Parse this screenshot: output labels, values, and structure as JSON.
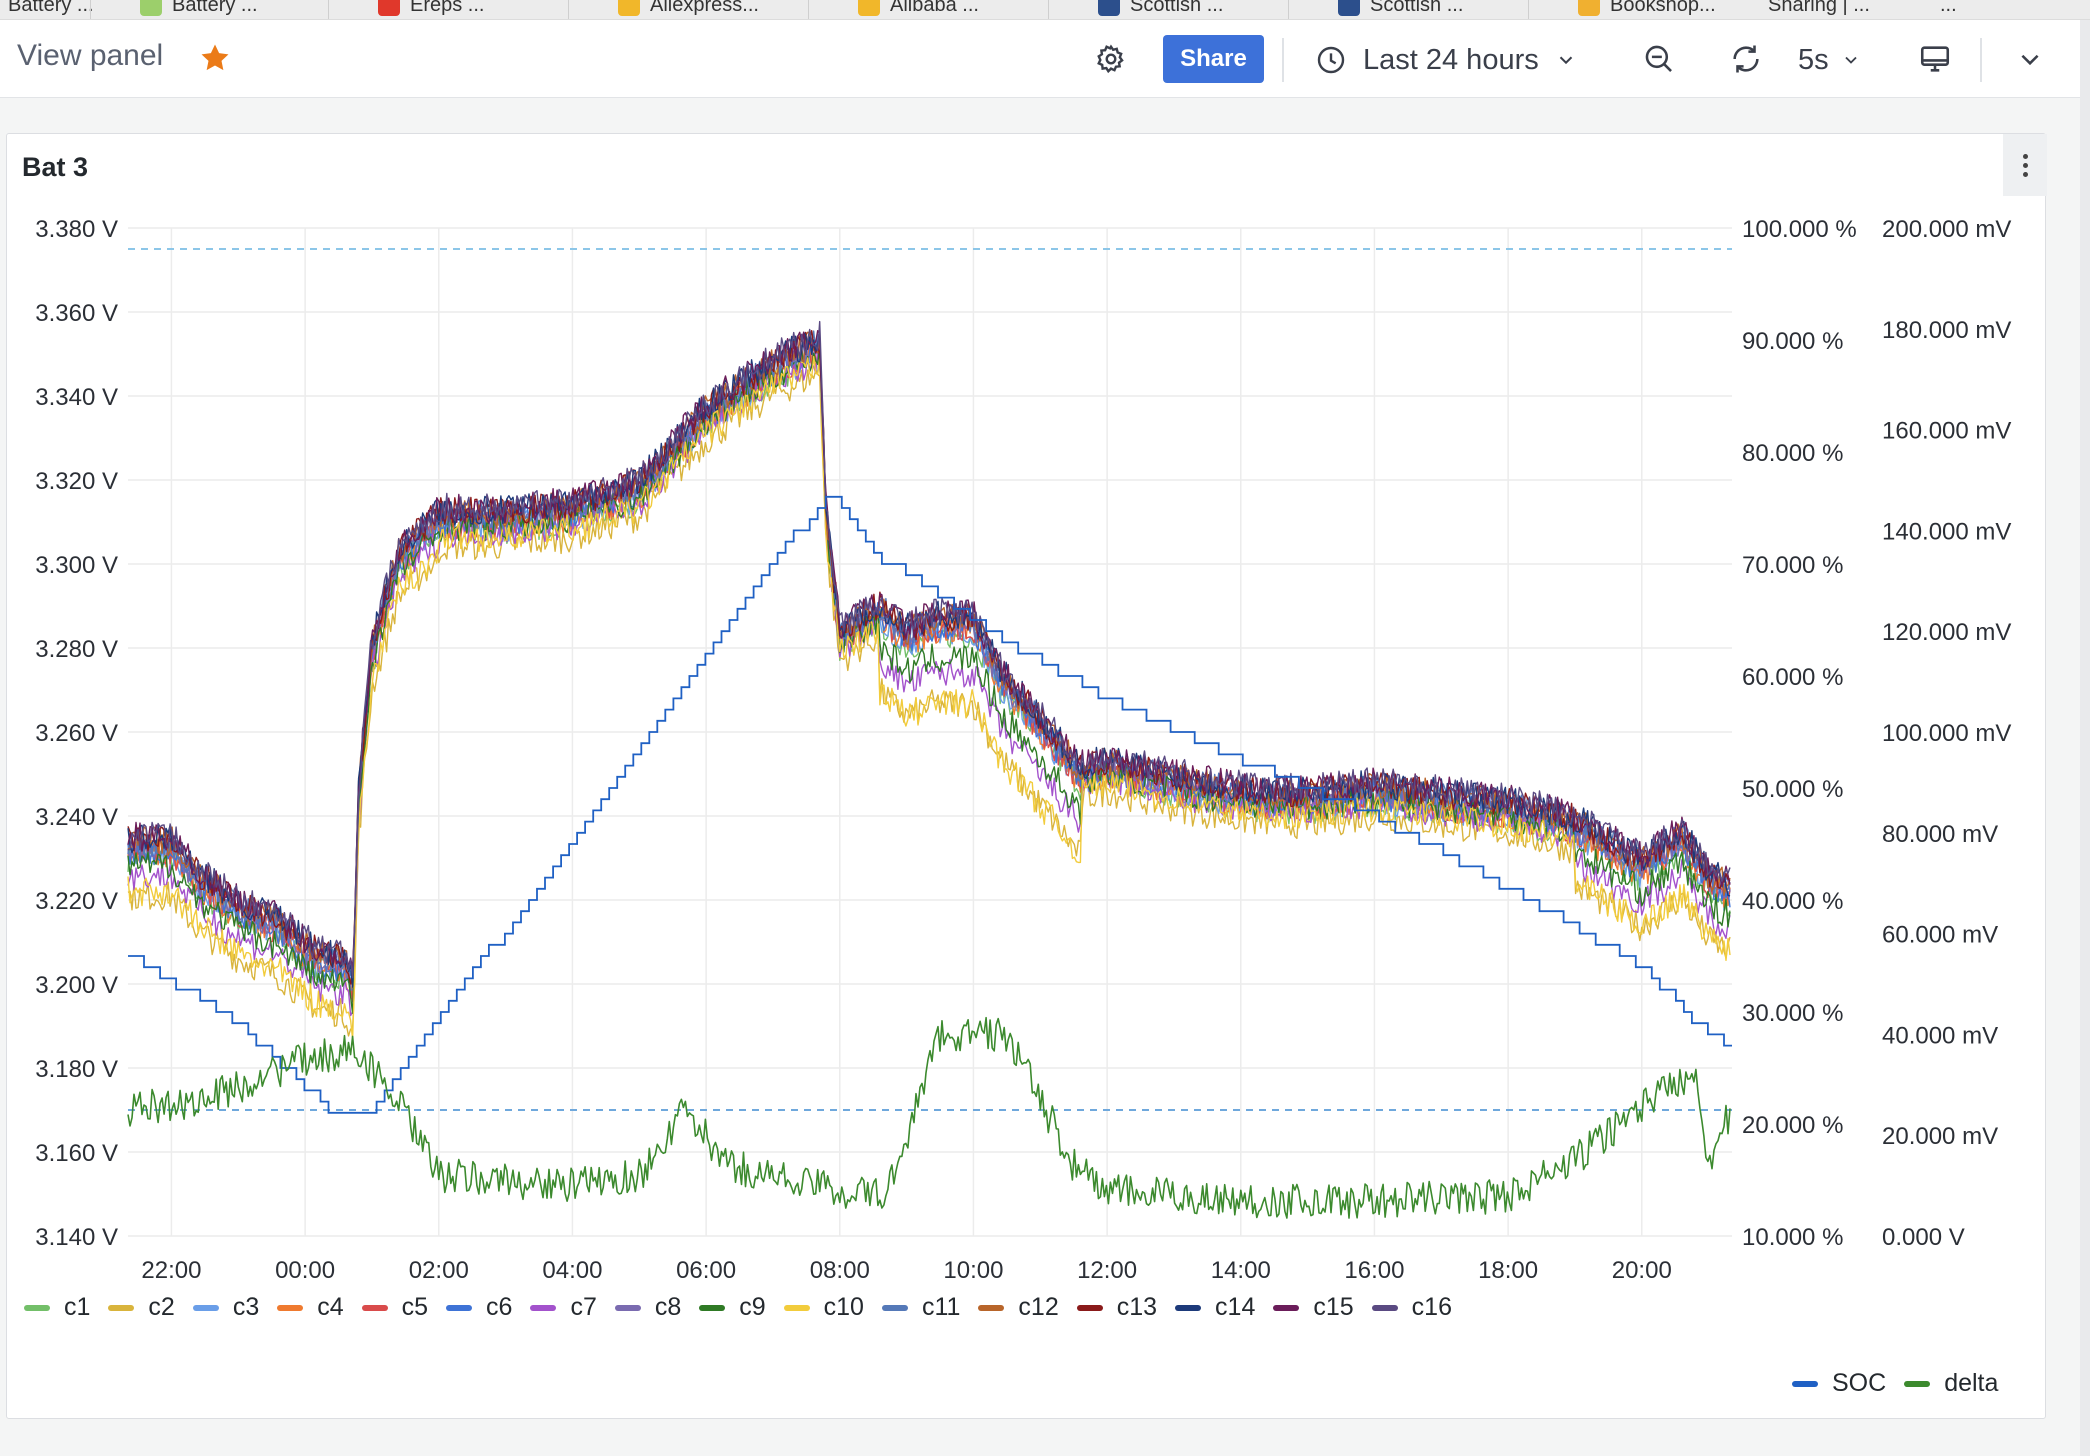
{
  "browser_tabs": [
    "Battery ...",
    "Ereps ...",
    "Aliexpress...",
    "Alibaba ...",
    "Scottish ...",
    "Scottish ...",
    "Bookshop...",
    "Sharing | ...",
    "..."
  ],
  "toolbar": {
    "title": "View panel",
    "share_label": "Share",
    "time_range": "Last 24 hours",
    "refresh_interval": "5s"
  },
  "colors": {
    "accent": "#3d71d9",
    "star": "#eb7b18",
    "soc": "#1f60c4",
    "delta": "#3c8a2e"
  },
  "panel": {
    "title": "Bat 3"
  },
  "chart_data": {
    "type": "line",
    "title": "Bat 3",
    "x_ticks": [
      "22:00",
      "00:00",
      "02:00",
      "04:00",
      "06:00",
      "08:00",
      "10:00",
      "12:00",
      "14:00",
      "16:00",
      "18:00",
      "20:00"
    ],
    "x_range_hours": [
      -2.65,
      21.35
    ],
    "y_left": {
      "ticks": [
        "3.380 V",
        "3.360 V",
        "3.340 V",
        "3.320 V",
        "3.300 V",
        "3.280 V",
        "3.260 V",
        "3.240 V",
        "3.220 V",
        "3.200 V",
        "3.180 V",
        "3.160 V",
        "3.140 V"
      ],
      "range": [
        3.14,
        3.38
      ],
      "unit": "V"
    },
    "y_right1": {
      "ticks": [
        "100.000 %",
        "90.000 %",
        "80.000 %",
        "70.000 %",
        "60.000 %",
        "50.000 %",
        "40.000 %",
        "30.000 %",
        "20.000 %",
        "10.000 %"
      ],
      "range": [
        10,
        100
      ],
      "unit": "%"
    },
    "y_right2": {
      "ticks": [
        "200.000 mV",
        "180.000 mV",
        "160.000 mV",
        "140.000 mV",
        "120.000 mV",
        "100.000 mV",
        "80.000 mV",
        "60.000 mV",
        "40.000 mV",
        "20.000 mV",
        "0.000 V"
      ],
      "range": [
        0,
        200
      ],
      "unit": "mV"
    },
    "thresholds": {
      "upper_V": 3.375,
      "lower_V": 3.17
    },
    "cell_profile": {
      "hours": [
        -2.65,
        -2.0,
        -1.6,
        -1.0,
        -0.4,
        0.2,
        0.6,
        0.72,
        0.8,
        1.0,
        1.4,
        2.0,
        3.0,
        4.0,
        5.0,
        6.0,
        7.0,
        7.7,
        7.8,
        8.0,
        8.6,
        9.0,
        9.4,
        10.0,
        10.4,
        11.0,
        11.6,
        12.0,
        13.0,
        14.0,
        15.0,
        16.0,
        17.0,
        18.0,
        19.0,
        20.0,
        20.6,
        21.0,
        21.35
      ],
      "volts": [
        3.233,
        3.233,
        3.225,
        3.218,
        3.214,
        3.206,
        3.205,
        3.2,
        3.245,
        3.28,
        3.302,
        3.311,
        3.311,
        3.313,
        3.318,
        3.336,
        3.347,
        3.352,
        3.31,
        3.283,
        3.289,
        3.283,
        3.286,
        3.286,
        3.273,
        3.262,
        3.25,
        3.252,
        3.248,
        3.245,
        3.244,
        3.246,
        3.244,
        3.242,
        3.238,
        3.228,
        3.235,
        3.225,
        3.222
      ]
    },
    "series": [
      {
        "name": "c1",
        "color": "#73bf69"
      },
      {
        "name": "c2",
        "color": "#d9b43c"
      },
      {
        "name": "c3",
        "color": "#6a9ee8"
      },
      {
        "name": "c4",
        "color": "#ef7a2f"
      },
      {
        "name": "c5",
        "color": "#d94b4b"
      },
      {
        "name": "c6",
        "color": "#3e73d6"
      },
      {
        "name": "c7",
        "color": "#a352cc"
      },
      {
        "name": "c8",
        "color": "#7a6bb0"
      },
      {
        "name": "c9",
        "color": "#2f7a25"
      },
      {
        "name": "c10",
        "color": "#f2cc3c"
      },
      {
        "name": "c11",
        "color": "#5579b8"
      },
      {
        "name": "c12",
        "color": "#b8652a"
      },
      {
        "name": "c13",
        "color": "#8a1a1a"
      },
      {
        "name": "c14",
        "color": "#1d3a7a"
      },
      {
        "name": "c15",
        "color": "#6b1d5a"
      },
      {
        "name": "c16",
        "color": "#5a4a82"
      },
      {
        "name": "SOC",
        "color": "#1f60c4",
        "unit": "%",
        "hours": [
          -2.65,
          -1.0,
          0.5,
          0.9,
          7.8,
          8.5,
          10.5,
          12.0,
          14.0,
          16.0,
          18.0,
          20.0,
          20.8,
          21.35
        ],
        "values": [
          35.0,
          29.0,
          20.5,
          20.5,
          76.5,
          71.0,
          63.0,
          58.0,
          52.5,
          47.5,
          41.0,
          34.0,
          29.0,
          27.0
        ]
      },
      {
        "name": "delta",
        "color": "#3c8a2e",
        "unit": "mV",
        "hours": [
          -2.65,
          -1.5,
          0.0,
          0.8,
          1.5,
          2.0,
          4.0,
          5.0,
          5.7,
          6.3,
          7.0,
          8.0,
          8.7,
          9.5,
          10.5,
          11.5,
          12.0,
          14.0,
          16.0,
          18.0,
          19.0,
          20.0,
          20.8,
          21.0,
          21.35
        ],
        "values": [
          25,
          27,
          35,
          37,
          24,
          12,
          10,
          12,
          25,
          14,
          12,
          9,
          8,
          40,
          40,
          14,
          9,
          7,
          7,
          8,
          15,
          26,
          33,
          15,
          25
        ]
      }
    ]
  },
  "legend": {
    "cells": [
      "c1",
      "c2",
      "c3",
      "c4",
      "c5",
      "c6",
      "c7",
      "c8",
      "c9",
      "c10",
      "c11",
      "c12",
      "c13",
      "c14",
      "c15",
      "c16"
    ],
    "secondary": [
      "SOC",
      "delta"
    ]
  }
}
